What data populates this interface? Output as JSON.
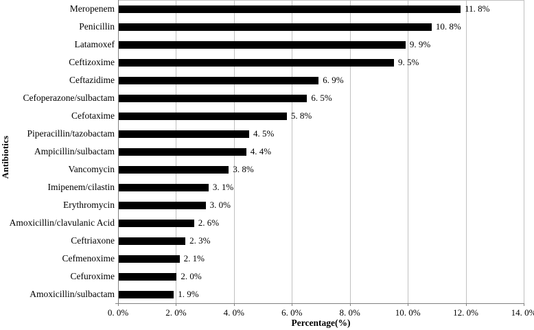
{
  "chart_data": {
    "type": "bar",
    "orientation": "horizontal",
    "title": "",
    "xlabel": "Percentage(%)",
    "ylabel": "Antibiotics",
    "categories": [
      "Meropenem",
      "Penicillin",
      "Latamoxef",
      "Ceftizoxime",
      "Ceftazidime",
      "Cefoperazone/sulbactam",
      "Cefotaxime",
      "Piperacillin/tazobactam",
      "Ampicillin/sulbactam",
      "Vancomycin",
      "Imipenem/cilastin",
      "Erythromycin",
      "Amoxicillin/clavulanic Acid",
      "Ceftriaxone",
      "Cefmenoxime",
      "Cefuroxime",
      "Amoxicillin/sulbactam"
    ],
    "values": [
      11.8,
      10.8,
      9.9,
      9.5,
      6.9,
      6.5,
      5.8,
      4.5,
      4.4,
      3.8,
      3.1,
      3.0,
      2.6,
      2.3,
      2.1,
      2.0,
      1.9
    ],
    "value_labels": [
      "11. 8%",
      "10. 8%",
      "9. 9%",
      "9. 5%",
      "6. 9%",
      "6. 5%",
      "5. 8%",
      "4. 5%",
      "4. 4%",
      "3. 8%",
      "3. 1%",
      "3. 0%",
      "2. 6%",
      "2. 3%",
      "2. 1%",
      "2. 0%",
      "1. 9%"
    ],
    "xlim": [
      0,
      14
    ],
    "x_tick_values": [
      0,
      2,
      4,
      6,
      8,
      10,
      12,
      14
    ],
    "x_tick_labels": [
      "0. 0%",
      "2. 0%",
      "4. 0%",
      "6. 0%",
      "8. 0%",
      "10. 0%",
      "12. 0%",
      "14. 0%"
    ],
    "grid": "vertical-on",
    "legend": "none",
    "colors": {
      "bar": "#000000",
      "gridline": "#c0c0c0",
      "axis": "#808080",
      "text": "#000000",
      "background": "#ffffff"
    }
  }
}
